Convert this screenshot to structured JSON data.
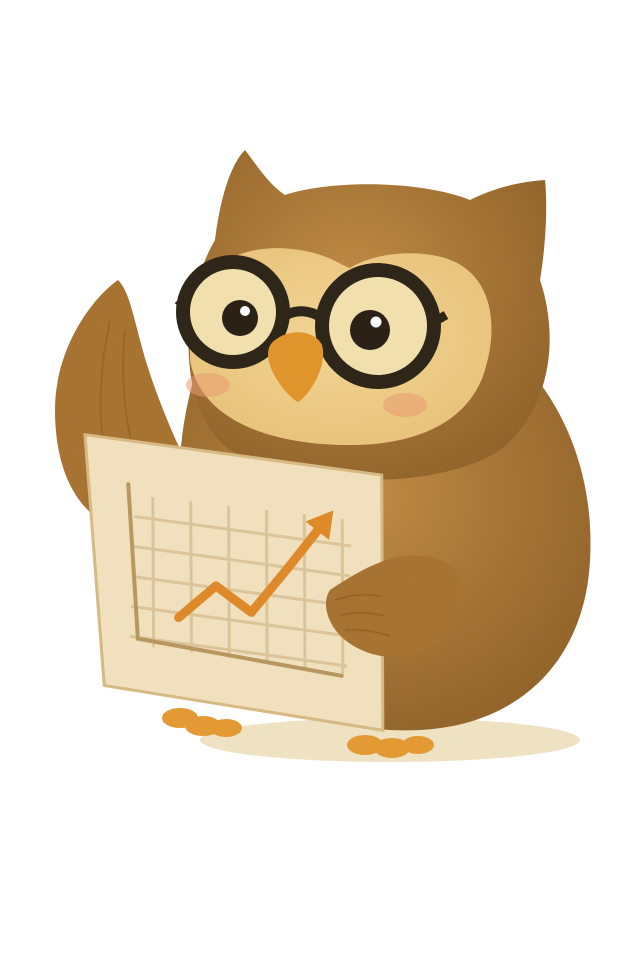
{
  "scene": {
    "subject": "owl-icon",
    "colors": {
      "background": "#ffffff",
      "feather_dark": "#8a5a1e",
      "feather_mid": "#a9712b",
      "feather_light": "#c58d44",
      "face_disc": "#e8c27a",
      "face_light": "#f2d596",
      "glasses": "#2e2618",
      "eye_white": "#f1dfae",
      "pupil": "#2b2116",
      "beak": "#e0952c",
      "cheek": "#e99a73",
      "feet": "#e39a34",
      "board": "#f1e0bd",
      "board_edge": "#d6b983",
      "grid_line": "#dcc49a",
      "axis_line": "#b89660",
      "trend_arrow": "#de8a2a",
      "shadow": "#efe2c2"
    }
  },
  "chart_sign": {
    "trend_points": [
      [
        0,
        0.05
      ],
      [
        1,
        0.35
      ],
      [
        2,
        0.12
      ],
      [
        3,
        0.55
      ],
      [
        4,
        1.0
      ]
    ]
  }
}
